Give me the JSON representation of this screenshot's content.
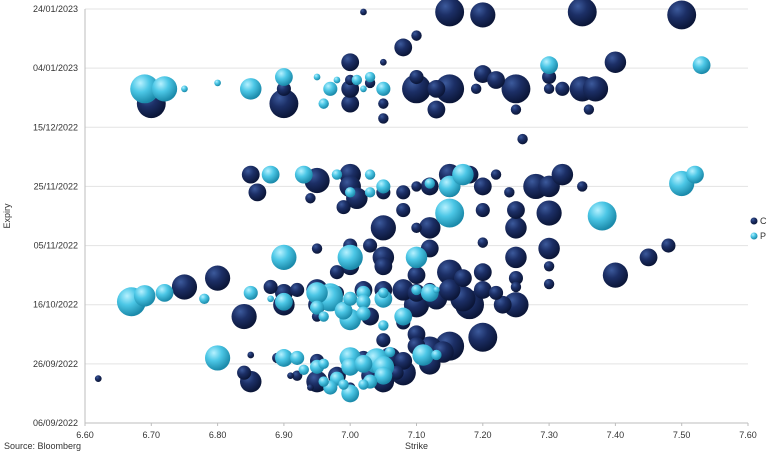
{
  "chart_data": {
    "type": "scatter",
    "xlabel": "Strike",
    "ylabel": "Expiry",
    "xlim": [
      6.6,
      7.6
    ],
    "x_ticks": [
      "6.60",
      "6.70",
      "6.80",
      "6.90",
      "7.00",
      "7.10",
      "7.20",
      "7.30",
      "7.40",
      "7.50",
      "7.60"
    ],
    "y_ticks": [
      "24/01/2023",
      "04/01/2023",
      "15/12/2022",
      "25/11/2022",
      "05/11/2022",
      "16/10/2022",
      "26/09/2022",
      "06/09/2022"
    ],
    "y_tick_days": [
      140,
      120,
      100,
      80,
      60,
      40,
      20,
      0
    ],
    "y_origin_date": "06/09/2022",
    "legend_position": "right",
    "grid": "horizontal",
    "series": [
      {
        "name": "C",
        "color": "#16285a",
        "points": [
          [
            7.15,
            139,
            7
          ],
          [
            7.2,
            138,
            6
          ],
          [
            7.35,
            139,
            7
          ],
          [
            7.5,
            138,
            7
          ],
          [
            7.02,
            139,
            1
          ],
          [
            7.1,
            131,
            2
          ],
          [
            7.08,
            127,
            4
          ],
          [
            7.4,
            122,
            5
          ],
          [
            7.0,
            122,
            4
          ],
          [
            7.05,
            122,
            1
          ],
          [
            7.1,
            117,
            3
          ],
          [
            7.2,
            118,
            4
          ],
          [
            7.22,
            116,
            4
          ],
          [
            7.0,
            116,
            2
          ],
          [
            7.03,
            115,
            2
          ],
          [
            7.05,
            113,
            1
          ],
          [
            7.1,
            113,
            7
          ],
          [
            7.13,
            113,
            4
          ],
          [
            7.15,
            113,
            7
          ],
          [
            7.19,
            113,
            2
          ],
          [
            7.25,
            113,
            7
          ],
          [
            7.3,
            113,
            2
          ],
          [
            7.32,
            113,
            3
          ],
          [
            7.35,
            113,
            6
          ],
          [
            7.37,
            113,
            6
          ],
          [
            7.3,
            117,
            3
          ],
          [
            6.7,
            108,
            7
          ],
          [
            6.9,
            108,
            7
          ],
          [
            6.9,
            113,
            3
          ],
          [
            7.0,
            108,
            4
          ],
          [
            7.0,
            113,
            4
          ],
          [
            7.05,
            108,
            2
          ],
          [
            7.13,
            106,
            4
          ],
          [
            7.25,
            106,
            2
          ],
          [
            7.36,
            106,
            2
          ],
          [
            7.05,
            103,
            2
          ],
          [
            7.26,
            96,
            2
          ],
          [
            6.85,
            84,
            4
          ],
          [
            6.86,
            78,
            4
          ],
          [
            6.95,
            82,
            6
          ],
          [
            6.94,
            76,
            2
          ],
          [
            7.0,
            84,
            5
          ],
          [
            7.0,
            80,
            5
          ],
          [
            7.01,
            76,
            5
          ],
          [
            6.99,
            73,
            3
          ],
          [
            7.05,
            78,
            3
          ],
          [
            7.08,
            78,
            3
          ],
          [
            7.1,
            80,
            2
          ],
          [
            7.12,
            80,
            4
          ],
          [
            7.15,
            84,
            5
          ],
          [
            7.15,
            80,
            5
          ],
          [
            7.18,
            84,
            4
          ],
          [
            7.2,
            80,
            4
          ],
          [
            7.22,
            84,
            2
          ],
          [
            7.24,
            78,
            2
          ],
          [
            7.28,
            80,
            6
          ],
          [
            7.3,
            80,
            5
          ],
          [
            7.32,
            84,
            5
          ],
          [
            7.35,
            80,
            2
          ],
          [
            7.08,
            72,
            3
          ],
          [
            7.25,
            72,
            4
          ],
          [
            7.2,
            72,
            3
          ],
          [
            7.15,
            70,
            3
          ],
          [
            7.3,
            71,
            6
          ],
          [
            7.05,
            66,
            6
          ],
          [
            7.12,
            66,
            5
          ],
          [
            6.95,
            59,
            2
          ],
          [
            7.0,
            60,
            3
          ],
          [
            7.03,
            60,
            3
          ],
          [
            7.05,
            56,
            5
          ],
          [
            7.12,
            59,
            4
          ],
          [
            7.1,
            66,
            2
          ],
          [
            7.2,
            61,
            2
          ],
          [
            7.25,
            66,
            5
          ],
          [
            7.25,
            56,
            5
          ],
          [
            7.3,
            59,
            5
          ],
          [
            7.3,
            53,
            2
          ],
          [
            7.45,
            56,
            4
          ],
          [
            7.48,
            60,
            3
          ],
          [
            7.4,
            50,
            6
          ],
          [
            6.8,
            49,
            6
          ],
          [
            6.98,
            51,
            3
          ],
          [
            7.0,
            53,
            4
          ],
          [
            7.05,
            53,
            4
          ],
          [
            7.1,
            50,
            4
          ],
          [
            7.15,
            51,
            6
          ],
          [
            7.17,
            49,
            4
          ],
          [
            7.2,
            51,
            4
          ],
          [
            7.25,
            49,
            3
          ],
          [
            7.3,
            47,
            2
          ],
          [
            6.75,
            46,
            6
          ],
          [
            6.88,
            46,
            3
          ],
          [
            6.9,
            44,
            4
          ],
          [
            6.92,
            45,
            3
          ],
          [
            6.95,
            45,
            5
          ],
          [
            6.98,
            44,
            3
          ],
          [
            7.02,
            45,
            4
          ],
          [
            7.05,
            45,
            4
          ],
          [
            7.08,
            45,
            5
          ],
          [
            7.1,
            44,
            4
          ],
          [
            7.1,
            40,
            6
          ],
          [
            7.12,
            45,
            3
          ],
          [
            7.13,
            42,
            5
          ],
          [
            7.15,
            45,
            5
          ],
          [
            7.17,
            42,
            6
          ],
          [
            7.18,
            40,
            7
          ],
          [
            7.2,
            45,
            4
          ],
          [
            7.22,
            44,
            3
          ],
          [
            7.23,
            40,
            4
          ],
          [
            7.25,
            46,
            2
          ],
          [
            7.25,
            40,
            6
          ],
          [
            6.84,
            36,
            6
          ],
          [
            6.9,
            40,
            5
          ],
          [
            6.95,
            40,
            4
          ],
          [
            6.95,
            36,
            2
          ],
          [
            7.0,
            36,
            3
          ],
          [
            7.03,
            36,
            4
          ],
          [
            7.08,
            34,
            3
          ],
          [
            7.1,
            30,
            4
          ],
          [
            7.05,
            28,
            3
          ],
          [
            7.1,
            26,
            4
          ],
          [
            7.12,
            25,
            6
          ],
          [
            7.14,
            24,
            5
          ],
          [
            7.15,
            26,
            7
          ],
          [
            7.2,
            29,
            7
          ],
          [
            7.02,
            22,
            3
          ],
          [
            7.06,
            22,
            5
          ],
          [
            7.08,
            21,
            4
          ],
          [
            7.12,
            20,
            5
          ],
          [
            7.05,
            14,
            5
          ],
          [
            7.03,
            16,
            4
          ],
          [
            7.07,
            17,
            3
          ],
          [
            7.0,
            19,
            2
          ],
          [
            6.95,
            21,
            3
          ],
          [
            6.95,
            14,
            5
          ],
          [
            6.98,
            16,
            4
          ],
          [
            6.92,
            16,
            2
          ],
          [
            6.89,
            22,
            2
          ],
          [
            6.85,
            23,
            1
          ],
          [
            6.84,
            17,
            3
          ],
          [
            6.85,
            14,
            5
          ],
          [
            7.08,
            17,
            6
          ],
          [
            6.97,
            12,
            2
          ],
          [
            7.0,
            12,
            2
          ],
          [
            6.91,
            16,
            1
          ],
          [
            6.94,
            12,
            1
          ],
          [
            6.62,
            15,
            1
          ]
        ]
      },
      {
        "name": "P",
        "color": "#4cc7e6",
        "points": [
          [
            7.3,
            121,
            4
          ],
          [
            7.53,
            121,
            4
          ],
          [
            6.69,
            113,
            7
          ],
          [
            6.72,
            113,
            6
          ],
          [
            6.75,
            113,
            1
          ],
          [
            6.8,
            115,
            1
          ],
          [
            6.85,
            113,
            5
          ],
          [
            6.9,
            117,
            4
          ],
          [
            6.95,
            117,
            1
          ],
          [
            6.97,
            113,
            3
          ],
          [
            6.98,
            116,
            1
          ],
          [
            7.01,
            116,
            2
          ],
          [
            7.03,
            117,
            2
          ],
          [
            7.05,
            113,
            3
          ],
          [
            6.96,
            108,
            2
          ],
          [
            7.02,
            113,
            1
          ],
          [
            6.88,
            84,
            4
          ],
          [
            6.93,
            84,
            4
          ],
          [
            6.98,
            84,
            2
          ],
          [
            7.03,
            84,
            2
          ],
          [
            7.05,
            80,
            3
          ],
          [
            7.0,
            78,
            2
          ],
          [
            7.03,
            78,
            2
          ],
          [
            7.12,
            81,
            2
          ],
          [
            7.15,
            80,
            5
          ],
          [
            7.17,
            84,
            5
          ],
          [
            7.15,
            71,
            7
          ],
          [
            7.38,
            70,
            7
          ],
          [
            7.5,
            81,
            6
          ],
          [
            7.52,
            84,
            4
          ],
          [
            6.9,
            56,
            6
          ],
          [
            7.0,
            56,
            6
          ],
          [
            7.1,
            56,
            5
          ],
          [
            6.67,
            41,
            7
          ],
          [
            6.69,
            43,
            5
          ],
          [
            6.72,
            44,
            4
          ],
          [
            6.78,
            42,
            2
          ],
          [
            6.85,
            44,
            3
          ],
          [
            6.88,
            42,
            1
          ],
          [
            6.9,
            41,
            4
          ],
          [
            6.95,
            44,
            5
          ],
          [
            6.95,
            39,
            3
          ],
          [
            6.97,
            43,
            6
          ],
          [
            6.97,
            42,
            6
          ],
          [
            7.0,
            42,
            3
          ],
          [
            7.02,
            44,
            3
          ],
          [
            7.02,
            41,
            3
          ],
          [
            7.05,
            42,
            4
          ],
          [
            7.05,
            44,
            2
          ],
          [
            7.1,
            45,
            2
          ],
          [
            7.12,
            44,
            4
          ],
          [
            7.13,
            45,
            1
          ],
          [
            6.96,
            36,
            2
          ],
          [
            6.99,
            38,
            4
          ],
          [
            7.0,
            35,
            5
          ],
          [
            7.02,
            37,
            3
          ],
          [
            7.05,
            33,
            2
          ],
          [
            7.08,
            36,
            4
          ],
          [
            6.8,
            22,
            6
          ],
          [
            6.9,
            22,
            4
          ],
          [
            6.92,
            22,
            3
          ],
          [
            6.95,
            19,
            3
          ],
          [
            6.96,
            20,
            2
          ],
          [
            7.0,
            22,
            5
          ],
          [
            7.0,
            19,
            4
          ],
          [
            7.02,
            20,
            4
          ],
          [
            7.04,
            21,
            6
          ],
          [
            7.05,
            19,
            5
          ],
          [
            7.05,
            16,
            4
          ],
          [
            7.03,
            14,
            3
          ],
          [
            6.98,
            15,
            3
          ],
          [
            6.97,
            12,
            3
          ],
          [
            6.99,
            13,
            2
          ],
          [
            7.0,
            10,
            4
          ],
          [
            7.02,
            13,
            2
          ],
          [
            7.11,
            23,
            5
          ],
          [
            6.96,
            14,
            2
          ],
          [
            6.93,
            18,
            2
          ],
          [
            7.06,
            24,
            2
          ],
          [
            7.13,
            23,
            2
          ]
        ]
      }
    ]
  },
  "source_text": "Source: Bloomberg"
}
